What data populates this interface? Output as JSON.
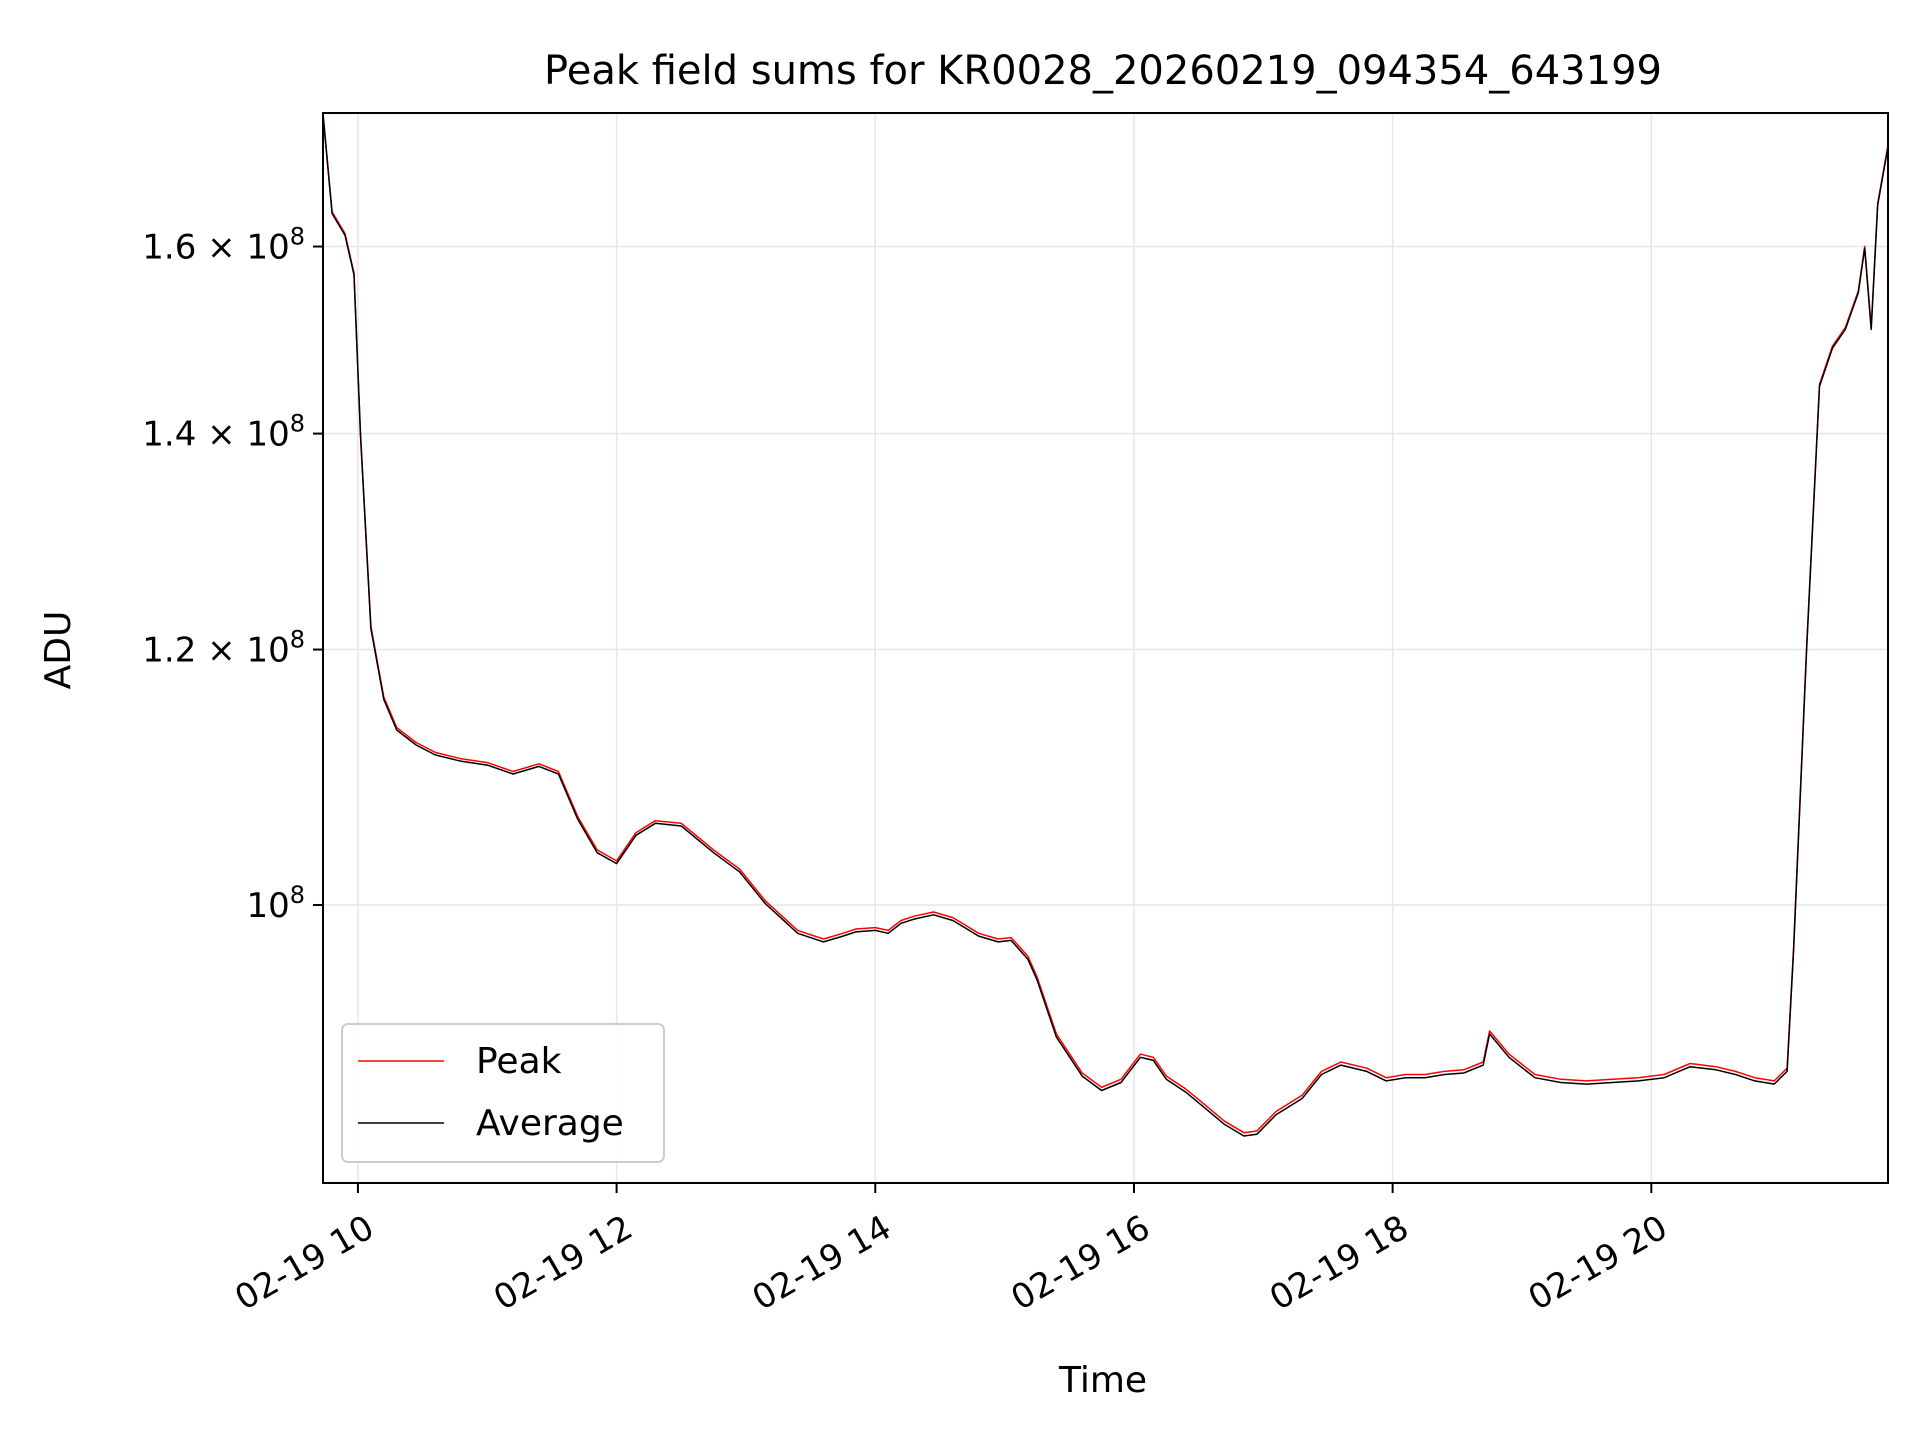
{
  "chart_data": {
    "type": "line",
    "title": "Peak field sums for KR0028_20260219_094354_643199",
    "xlabel": "Time",
    "ylabel": "ADU",
    "y_scale": "log",
    "xlim": [
      9.73,
      21.83
    ],
    "ylim": [
      82000000,
      176000000
    ],
    "grid": true,
    "legend_position": "lower-left",
    "x_ticks": [
      {
        "value": 10,
        "label": "02-19 10"
      },
      {
        "value": 12,
        "label": "02-19 12"
      },
      {
        "value": 14,
        "label": "02-19 14"
      },
      {
        "value": 16,
        "label": "02-19 16"
      },
      {
        "value": 18,
        "label": "02-19 18"
      },
      {
        "value": 20,
        "label": "02-19 20"
      }
    ],
    "y_ticks": [
      {
        "value": 100000000,
        "mantissa": "10",
        "exponent": "8"
      },
      {
        "value": 120000000,
        "mantissa": "1.2 × 10",
        "exponent": "8"
      },
      {
        "value": 140000000,
        "mantissa": "1.4 × 10",
        "exponent": "8"
      },
      {
        "value": 160000000,
        "mantissa": "1.6 × 10",
        "exponent": "8"
      }
    ],
    "x": [
      9.73,
      9.8,
      9.9,
      9.97,
      10.02,
      10.1,
      10.2,
      10.3,
      10.45,
      10.6,
      10.8,
      11.0,
      11.2,
      11.4,
      11.55,
      11.7,
      11.85,
      12.0,
      12.15,
      12.3,
      12.5,
      12.75,
      12.95,
      13.15,
      13.4,
      13.6,
      13.75,
      13.85,
      14.0,
      14.1,
      14.2,
      14.3,
      14.45,
      14.6,
      14.8,
      14.95,
      15.05,
      15.18,
      15.25,
      15.4,
      15.6,
      15.75,
      15.9,
      16.05,
      16.15,
      16.25,
      16.4,
      16.55,
      16.7,
      16.85,
      16.95,
      17.1,
      17.3,
      17.45,
      17.6,
      17.8,
      17.95,
      18.1,
      18.25,
      18.4,
      18.55,
      18.7,
      18.75,
      18.9,
      19.1,
      19.3,
      19.5,
      19.7,
      19.9,
      20.1,
      20.3,
      20.5,
      20.65,
      20.8,
      20.95,
      21.05,
      21.1,
      21.2,
      21.3,
      21.4,
      21.5,
      21.6,
      21.65,
      21.7,
      21.75,
      21.83
    ],
    "series": [
      {
        "name": "Peak",
        "color": "#ff0000",
        "values": [
          176000000,
          164000000,
          161500000,
          157000000,
          140000000,
          122000000,
          116000000,
          113500000,
          112300000,
          111500000,
          111000000,
          110700000,
          110000000,
          110600000,
          110000000,
          106500000,
          104000000,
          103200000,
          105300000,
          106200000,
          106000000,
          104000000,
          102600000,
          100300000,
          98200000,
          97600000,
          98000000,
          98300000,
          98400000,
          98200000,
          98900000,
          99200000,
          99500000,
          99100000,
          98000000,
          97600000,
          97700000,
          96400000,
          95000000,
          91200000,
          88700000,
          87800000,
          88300000,
          89900000,
          89700000,
          88500000,
          87700000,
          86700000,
          85700000,
          85000000,
          85100000,
          86300000,
          87300000,
          88800000,
          89400000,
          89000000,
          88400000,
          88600000,
          88600000,
          88800000,
          88900000,
          89400000,
          91400000,
          89900000,
          88600000,
          88300000,
          88200000,
          88300000,
          88400000,
          88600000,
          89300000,
          89100000,
          88800000,
          88400000,
          88200000,
          89000000,
          97000000,
          120000000,
          145000000,
          149000000,
          151000000,
          155000000,
          160000000,
          151000000,
          165000000,
          172000000
        ]
      },
      {
        "name": "Average",
        "color": "#000000",
        "values": [
          175800000,
          163800000,
          161300000,
          156800000,
          139800000,
          121800000,
          115800000,
          113300000,
          112100000,
          111300000,
          110800000,
          110500000,
          109800000,
          110400000,
          109800000,
          106300000,
          103800000,
          103000000,
          105100000,
          106000000,
          105800000,
          103800000,
          102400000,
          100100000,
          98000000,
          97400000,
          97800000,
          98100000,
          98200000,
          98000000,
          98700000,
          99000000,
          99300000,
          98900000,
          97800000,
          97400000,
          97500000,
          96200000,
          94800000,
          91000000,
          88500000,
          87600000,
          88100000,
          89700000,
          89500000,
          88300000,
          87500000,
          86500000,
          85500000,
          84800000,
          84900000,
          86100000,
          87100000,
          88600000,
          89200000,
          88800000,
          88200000,
          88400000,
          88400000,
          88600000,
          88700000,
          89200000,
          91200000,
          89700000,
          88400000,
          88100000,
          88000000,
          88100000,
          88200000,
          88400000,
          89100000,
          88900000,
          88600000,
          88200000,
          88000000,
          88800000,
          96800000,
          119800000,
          144800000,
          148800000,
          150800000,
          154800000,
          159800000,
          150800000,
          164800000,
          171800000
        ]
      }
    ]
  }
}
